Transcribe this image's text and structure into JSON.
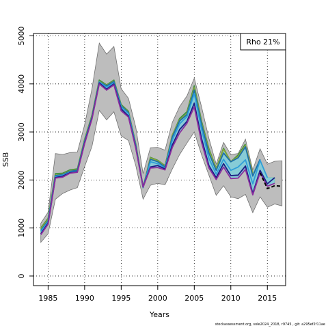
{
  "chart_data": {
    "type": "line",
    "xlabel": "Years",
    "ylabel": "SSB",
    "xlim": [
      1983,
      2017.5
    ],
    "ylim": [
      -200,
      5050
    ],
    "xticks": [
      1985,
      1990,
      1995,
      2000,
      2005,
      2010,
      2015
    ],
    "yticks": [
      0,
      1000,
      2000,
      3000,
      4000,
      5000
    ],
    "grid": "dotted",
    "legend_position": "top-right",
    "legend_text": "Rho 21%",
    "colors": {
      "band": "#bdbdbd",
      "band_edge": "#707070",
      "inner_band": "#7ecfdc",
      "inner_band_edge": "#66c2a4",
      "retro_peels": [
        "#3f8f3f",
        "#8aa83a",
        "#1e6fa8",
        "#2f9ed8",
        "#1c1c84",
        "#8a2e9e"
      ],
      "terminal": "#000000"
    },
    "ci_band": {
      "years": [
        1984,
        1985,
        1986,
        1987,
        1988,
        1989,
        1990,
        1991,
        1992,
        1993,
        1994,
        1995,
        1996,
        1997,
        1998,
        1999,
        2000,
        2001,
        2002,
        2003,
        2004,
        2005,
        2006,
        2007,
        2008,
        2009,
        2010,
        2011,
        2012,
        2013,
        2014,
        2015,
        2016,
        2017
      ],
      "lower": [
        700,
        880,
        1600,
        1720,
        1790,
        1840,
        2280,
        2700,
        3450,
        3250,
        3420,
        2920,
        2820,
        2300,
        1600,
        1890,
        1930,
        1900,
        2230,
        2530,
        2770,
        3000,
        2520,
        2100,
        1680,
        1880,
        1650,
        1610,
        1700,
        1320,
        1650,
        1430,
        1500,
        1460
      ],
      "upper": [
        1100,
        1330,
        2550,
        2530,
        2570,
        2580,
        3150,
        3900,
        4850,
        4620,
        4780,
        3900,
        3700,
        3100,
        2130,
        2670,
        2680,
        2620,
        3200,
        3530,
        3750,
        4120,
        3520,
        2870,
        2330,
        2780,
        2530,
        2550,
        2850,
        2210,
        2650,
        2330,
        2390,
        2400
      ]
    },
    "series": [
      {
        "values": [
          1000,
          1200,
          2130,
          2140,
          2210,
          2230,
          2850,
          3350,
          4080,
          3980,
          4080,
          3570,
          3430,
          2750,
          1840,
          2470,
          2410,
          2300,
          2930,
          3280,
          3420,
          3960,
          3220,
          2650,
          2240,
          2660,
          2380,
          2520,
          2750
        ]
      },
      {
        "values": [
          980,
          1180,
          2100,
          2120,
          2190,
          2210,
          2830,
          3330,
          4050,
          3970,
          4060,
          3550,
          3410,
          2730,
          1850,
          2460,
          2400,
          2290,
          2940,
          3250,
          3380,
          3920,
          3180,
          2620,
          2230,
          2640,
          2380,
          2490,
          2720,
          2140
        ]
      },
      {
        "values": [
          950,
          1150,
          2090,
          2110,
          2180,
          2200,
          2810,
          3310,
          4040,
          3960,
          4050,
          3540,
          3400,
          2720,
          1840,
          2430,
          2380,
          2270,
          2900,
          3230,
          3360,
          3870,
          3150,
          2560,
          2200,
          2560,
          2380,
          2460,
          2690,
          2080,
          2430
        ]
      },
      {
        "values": [
          930,
          1130,
          2070,
          2100,
          2160,
          2180,
          2800,
          3300,
          4040,
          3930,
          4020,
          3520,
          3380,
          2700,
          1840,
          2380,
          2340,
          2250,
          2830,
          3170,
          3320,
          3800,
          3050,
          2450,
          2120,
          2430,
          2200,
          2270,
          2420,
          1920,
          2410,
          2050
        ]
      },
      {
        "values": [
          880,
          1100,
          2050,
          2080,
          2150,
          2170,
          2780,
          3290,
          4020,
          3890,
          4000,
          3480,
          3330,
          2680,
          1860,
          2270,
          2300,
          2230,
          2730,
          3050,
          3220,
          3600,
          2860,
          2300,
          2050,
          2340,
          2090,
          2100,
          2290,
          1720,
          2200,
          1920,
          2050
        ]
      },
      {
        "values": [
          860,
          1080,
          2040,
          2060,
          2140,
          2160,
          2760,
          3270,
          4000,
          3870,
          3980,
          3440,
          3310,
          2660,
          1850,
          2250,
          2260,
          2210,
          2680,
          2980,
          3180,
          3520,
          2780,
          2250,
          2010,
          2270,
          2030,
          2040,
          2220,
          1690,
          2150,
          1870,
          1930
        ]
      }
    ],
    "terminal_series": {
      "years": [
        2014,
        2015,
        2016,
        2017
      ],
      "values": [
        2150,
        1820,
        1880,
        1870
      ]
    }
  },
  "footer_text": "stockassessment.org, sole2024_2018, r9745 , git: a295ef2f11ae"
}
